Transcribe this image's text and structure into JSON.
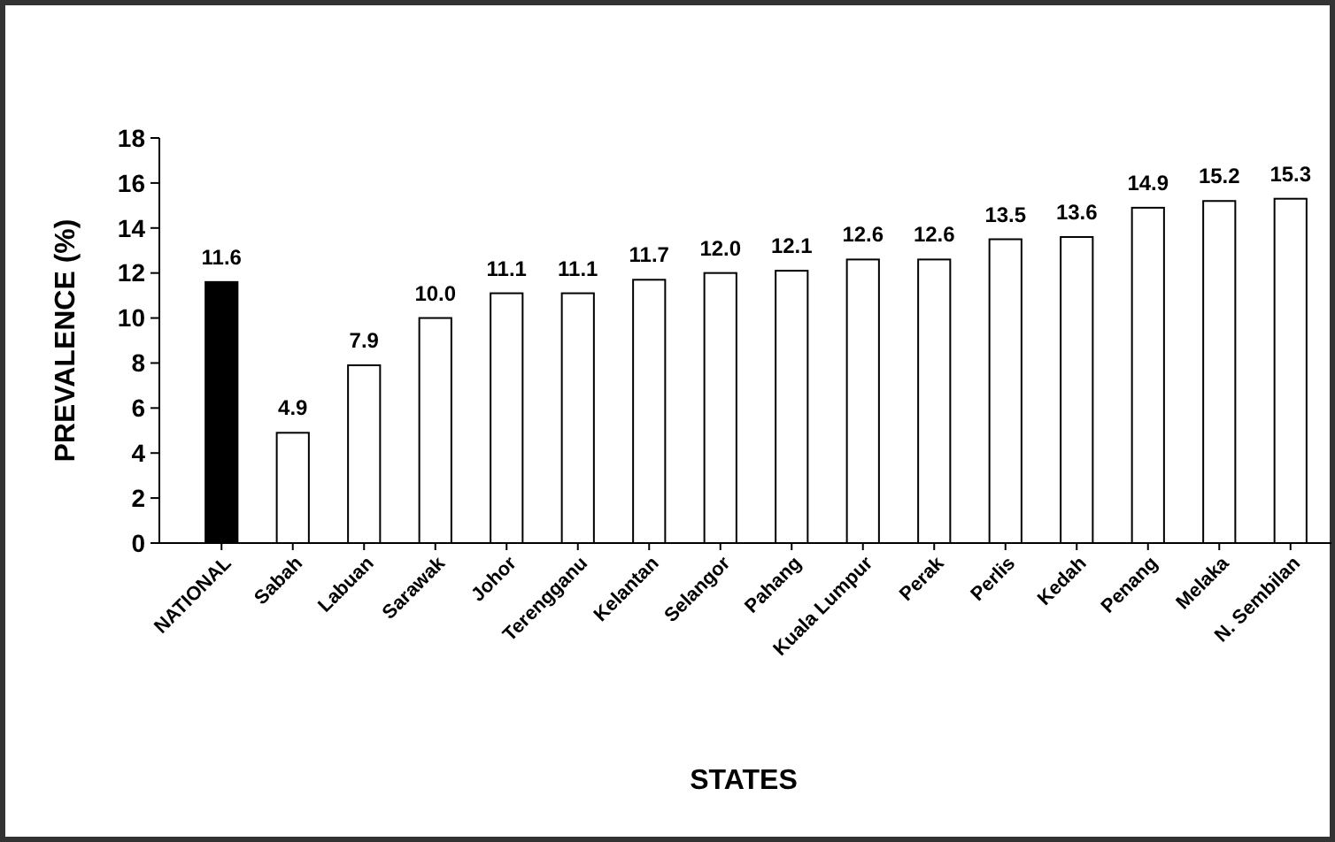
{
  "chart_data": {
    "type": "bar",
    "xlabel": "STATES",
    "ylabel": "PREVALENCE (%)",
    "categories": [
      "NATIONAL",
      "Sabah",
      "Labuan",
      "Sarawak",
      "Johor",
      "Terengganu",
      "Kelantan",
      "Selangor",
      "Pahang",
      "Kuala Lumpur",
      "Perak",
      "Perlis",
      "Kedah",
      "Penang",
      "Melaka",
      "N. Sembilan"
    ],
    "values": [
      11.6,
      4.9,
      7.9,
      10.0,
      11.1,
      11.1,
      11.7,
      12.0,
      12.1,
      12.6,
      12.6,
      13.5,
      13.6,
      14.9,
      15.2,
      15.3
    ],
    "value_labels": [
      "11.6",
      "4.9",
      "7.9",
      "10.0",
      "11.1",
      "11.1",
      "11.7",
      "12.0",
      "12.1",
      "12.6",
      "12.6",
      "13.5",
      "13.6",
      "14.9",
      "15.2",
      "15.3"
    ],
    "colors": [
      "#000000",
      "#ffffff",
      "#ffffff",
      "#ffffff",
      "#ffffff",
      "#ffffff",
      "#ffffff",
      "#ffffff",
      "#ffffff",
      "#ffffff",
      "#ffffff",
      "#ffffff",
      "#ffffff",
      "#ffffff",
      "#ffffff",
      "#ffffff"
    ],
    "ylim": [
      0,
      18
    ],
    "yticks": [
      0,
      2,
      4,
      6,
      8,
      10,
      12,
      14,
      16,
      18
    ],
    "grid": false
  }
}
